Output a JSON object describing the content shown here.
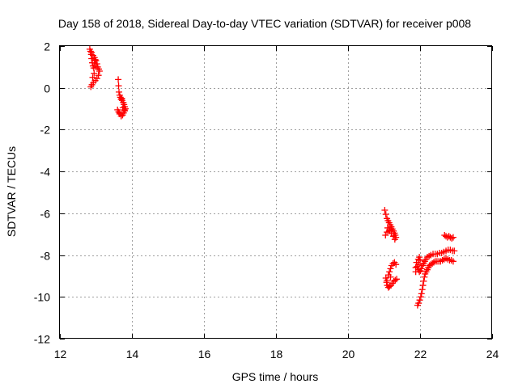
{
  "chart_data": {
    "type": "scatter",
    "title": "Day 158 of 2018, Sidereal Day-to-day VTEC variation (SDTVAR) for receiver p008",
    "xlabel": "GPS time / hours",
    "ylabel": "SDTVAR / TECUs",
    "xlim": [
      12,
      24
    ],
    "ylim": [
      -12,
      2
    ],
    "xticks": [
      "12",
      "14",
      "16",
      "18",
      "20",
      "22",
      "24"
    ],
    "yticks": [
      "2",
      "0",
      "-2",
      "-4",
      "-6",
      "-8",
      "-10",
      "-12"
    ],
    "grid": true,
    "marker": "plus",
    "color": "#ff0000",
    "series": [
      {
        "points": [
          [
            12.83,
            1.85
          ],
          [
            12.85,
            1.75
          ],
          [
            12.87,
            1.6
          ],
          [
            12.88,
            1.4
          ],
          [
            12.9,
            1.2
          ],
          [
            12.92,
            1.05
          ],
          [
            12.94,
            0.95
          ],
          [
            12.96,
            1.2
          ],
          [
            12.98,
            1.35
          ],
          [
            13.0,
            1.3
          ],
          [
            13.03,
            1.15
          ],
          [
            13.05,
            1.0
          ],
          [
            13.08,
            0.9
          ],
          [
            13.1,
            0.8
          ],
          [
            13.07,
            0.6
          ],
          [
            13.03,
            0.45
          ],
          [
            12.98,
            0.35
          ],
          [
            12.93,
            0.25
          ],
          [
            12.89,
            0.15
          ],
          [
            12.86,
            0.05
          ],
          [
            12.88,
            1.7
          ],
          [
            12.92,
            1.55
          ],
          [
            12.96,
            1.45
          ],
          [
            13.0,
            1.0
          ],
          [
            12.95,
            0.7
          ],
          [
            12.91,
            0.5
          ],
          [
            13.62,
            0.4
          ],
          [
            13.63,
            0.1
          ],
          [
            13.64,
            -0.2
          ],
          [
            13.66,
            -0.35
          ],
          [
            13.68,
            -0.45
          ],
          [
            13.7,
            -0.55
          ],
          [
            13.73,
            -0.6
          ],
          [
            13.76,
            -0.7
          ],
          [
            13.78,
            -0.8
          ],
          [
            13.8,
            -0.9
          ],
          [
            13.82,
            -1.0
          ],
          [
            13.8,
            -1.1
          ],
          [
            13.77,
            -1.2
          ],
          [
            13.74,
            -1.3
          ],
          [
            13.7,
            -1.35
          ],
          [
            13.66,
            -1.25
          ],
          [
            13.63,
            -1.15
          ],
          [
            13.6,
            -1.05
          ],
          [
            13.66,
            -1.2
          ],
          [
            13.72,
            -0.5
          ],
          [
            13.79,
            -1.05
          ],
          [
            13.75,
            -0.95
          ],
          [
            21.02,
            -5.85
          ],
          [
            21.05,
            -6.05
          ],
          [
            21.08,
            -6.25
          ],
          [
            21.11,
            -6.35
          ],
          [
            21.14,
            -6.45
          ],
          [
            21.17,
            -6.55
          ],
          [
            21.2,
            -6.65
          ],
          [
            21.23,
            -6.75
          ],
          [
            21.26,
            -6.85
          ],
          [
            21.29,
            -6.95
          ],
          [
            21.31,
            -7.05
          ],
          [
            21.33,
            -7.15
          ],
          [
            21.3,
            -7.25
          ],
          [
            21.26,
            -7.1
          ],
          [
            21.2,
            -6.95
          ],
          [
            21.14,
            -6.85
          ],
          [
            21.08,
            -6.9
          ],
          [
            21.04,
            -7.05
          ],
          [
            21.1,
            -6.7
          ],
          [
            21.16,
            -6.8
          ],
          [
            21.05,
            -9.1
          ],
          [
            21.07,
            -9.3
          ],
          [
            21.09,
            -9.45
          ],
          [
            21.12,
            -9.55
          ],
          [
            21.15,
            -9.5
          ],
          [
            21.19,
            -9.45
          ],
          [
            21.23,
            -9.35
          ],
          [
            21.27,
            -9.25
          ],
          [
            21.31,
            -9.2
          ],
          [
            21.35,
            -9.15
          ],
          [
            21.12,
            -8.95
          ],
          [
            21.15,
            -8.8
          ],
          [
            21.18,
            -8.65
          ],
          [
            21.21,
            -8.5
          ],
          [
            21.25,
            -8.4
          ],
          [
            21.29,
            -8.35
          ],
          [
            21.33,
            -8.45
          ],
          [
            21.18,
            -9.05
          ],
          [
            21.08,
            -9.2
          ],
          [
            21.93,
            -10.4
          ],
          [
            21.96,
            -10.3
          ],
          [
            21.99,
            -10.15
          ],
          [
            22.02,
            -10.0
          ],
          [
            22.04,
            -9.85
          ],
          [
            22.06,
            -9.65
          ],
          [
            22.08,
            -9.45
          ],
          [
            22.1,
            -9.25
          ],
          [
            22.12,
            -9.05
          ],
          [
            22.14,
            -8.9
          ],
          [
            22.17,
            -8.8
          ],
          [
            22.2,
            -8.7
          ],
          [
            22.23,
            -8.6
          ],
          [
            22.26,
            -8.5
          ],
          [
            22.3,
            -8.45
          ],
          [
            22.34,
            -8.4
          ],
          [
            22.38,
            -8.35
          ],
          [
            22.42,
            -8.3
          ],
          [
            22.47,
            -8.3
          ],
          [
            22.52,
            -8.3
          ],
          [
            22.57,
            -8.3
          ],
          [
            22.62,
            -8.25
          ],
          [
            22.67,
            -8.2
          ],
          [
            22.72,
            -8.15
          ],
          [
            22.77,
            -8.2
          ],
          [
            22.82,
            -8.25
          ],
          [
            22.87,
            -8.25
          ],
          [
            22.92,
            -8.3
          ],
          [
            21.9,
            -8.35
          ],
          [
            21.92,
            -8.55
          ],
          [
            21.95,
            -8.7
          ],
          [
            21.98,
            -8.8
          ],
          [
            22.01,
            -8.75
          ],
          [
            22.04,
            -8.65
          ],
          [
            22.07,
            -8.5
          ],
          [
            22.1,
            -8.4
          ],
          [
            22.13,
            -8.3
          ],
          [
            22.16,
            -8.2
          ],
          [
            22.2,
            -8.1
          ],
          [
            22.25,
            -8.05
          ],
          [
            22.3,
            -8.0
          ],
          [
            22.36,
            -7.95
          ],
          [
            22.42,
            -7.95
          ],
          [
            22.48,
            -7.95
          ],
          [
            22.54,
            -7.9
          ],
          [
            22.6,
            -7.9
          ],
          [
            22.66,
            -7.85
          ],
          [
            22.72,
            -7.8
          ],
          [
            22.78,
            -7.75
          ],
          [
            22.84,
            -7.75
          ],
          [
            22.9,
            -7.8
          ],
          [
            22.95,
            -7.8
          ],
          [
            21.95,
            -8.2
          ],
          [
            21.98,
            -8.1
          ],
          [
            22.0,
            -8.25
          ],
          [
            21.96,
            -8.45
          ],
          [
            21.88,
            -8.6
          ],
          [
            21.88,
            -8.8
          ],
          [
            22.68,
            -7.05
          ],
          [
            22.72,
            -7.1
          ],
          [
            22.76,
            -7.15
          ],
          [
            22.8,
            -7.1
          ],
          [
            22.84,
            -7.15
          ],
          [
            22.88,
            -7.2
          ],
          [
            22.92,
            -7.15
          ]
        ]
      }
    ]
  }
}
